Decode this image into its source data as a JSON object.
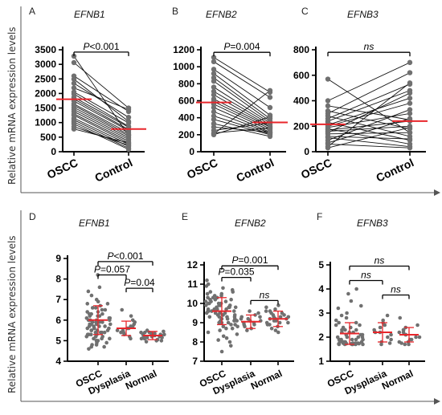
{
  "ylabel_text": "Relative mRNA expression levels",
  "chart_data": [
    {
      "id": "A",
      "type": "scatter",
      "title": "EFNB1",
      "panel_label": "A",
      "categories": [
        "OSCC",
        "Control"
      ],
      "ylim": [
        0,
        3500
      ],
      "yticks": [
        0,
        500,
        1000,
        1500,
        2000,
        2500,
        3000,
        3500
      ],
      "paired": true,
      "pairs": [
        [
          3280,
          560
        ],
        [
          3060,
          1500
        ],
        [
          2600,
          1380
        ],
        [
          2490,
          1040
        ],
        [
          2350,
          1180
        ],
        [
          2190,
          1450
        ],
        [
          2050,
          990
        ],
        [
          1980,
          870
        ],
        [
          1870,
          840
        ],
        [
          1810,
          760
        ],
        [
          1740,
          720
        ],
        [
          1640,
          650
        ],
        [
          1590,
          590
        ],
        [
          1520,
          540
        ],
        [
          1450,
          480
        ],
        [
          1380,
          420
        ],
        [
          1300,
          360
        ],
        [
          1250,
          300
        ],
        [
          1150,
          250
        ],
        [
          1090,
          180
        ],
        [
          1020,
          120
        ],
        [
          950,
          80
        ],
        [
          860,
          220
        ],
        [
          780,
          300
        ]
      ],
      "means": [
        1800,
        780
      ],
      "annotations": [
        {
          "text": "P<0.001",
          "from": 0,
          "to": 1,
          "y": 3420
        }
      ]
    },
    {
      "id": "B",
      "type": "scatter",
      "title": "EFNB2",
      "panel_label": "B",
      "categories": [
        "OSCC",
        "Control"
      ],
      "ylim": [
        0,
        1200
      ],
      "yticks": [
        0,
        200,
        400,
        600,
        800,
        1000,
        1200
      ],
      "paired": true,
      "pairs": [
        [
          1110,
          700
        ],
        [
          1060,
          640
        ],
        [
          970,
          520
        ],
        [
          920,
          430
        ],
        [
          870,
          390
        ],
        [
          830,
          360
        ],
        [
          760,
          340
        ],
        [
          710,
          320
        ],
        [
          670,
          300
        ],
        [
          620,
          290
        ],
        [
          590,
          270
        ],
        [
          560,
          250
        ],
        [
          520,
          230
        ],
        [
          470,
          220
        ],
        [
          420,
          210
        ],
        [
          380,
          200
        ],
        [
          330,
          180
        ],
        [
          290,
          230
        ],
        [
          250,
          340
        ],
        [
          220,
          280
        ],
        [
          210,
          720
        ],
        [
          200,
          410
        ]
      ],
      "means": [
        580,
        345
      ],
      "annotations": [
        {
          "text": "P=0.004",
          "from": 0,
          "to": 1,
          "y": 1170
        }
      ]
    },
    {
      "id": "C",
      "type": "scatter",
      "title": "EFNB3",
      "panel_label": "C",
      "categories": [
        "OSCC",
        "Control"
      ],
      "ylim": [
        0,
        800
      ],
      "yticks": [
        0,
        200,
        400,
        600,
        800
      ],
      "paired": true,
      "pairs": [
        [
          570,
          150
        ],
        [
          400,
          700
        ],
        [
          360,
          250
        ],
        [
          320,
          180
        ],
        [
          300,
          620
        ],
        [
          280,
          120
        ],
        [
          260,
          530
        ],
        [
          240,
          480
        ],
        [
          230,
          90
        ],
        [
          210,
          420
        ],
        [
          200,
          380
        ],
        [
          190,
          300
        ],
        [
          180,
          60
        ],
        [
          170,
          240
        ],
        [
          160,
          200
        ],
        [
          150,
          460
        ],
        [
          140,
          150
        ],
        [
          120,
          100
        ],
        [
          110,
          40
        ],
        [
          90,
          330
        ],
        [
          70,
          260
        ],
        [
          60,
          30
        ],
        [
          40,
          540
        ],
        [
          30,
          190
        ]
      ],
      "means": [
        215,
        240
      ],
      "annotations": [
        {
          "text": "ns",
          "from": 0,
          "to": 1,
          "y": 780
        }
      ]
    },
    {
      "id": "D",
      "type": "scatter",
      "title": "EFNB1",
      "panel_label": "D",
      "categories": [
        "OSCC",
        "Dysplasia",
        "Normal"
      ],
      "ylim": [
        4,
        9
      ],
      "yticks": [
        4,
        5,
        6,
        7,
        8,
        9
      ],
      "groups": [
        {
          "name": "OSCC",
          "mean": 6.0,
          "sd_low": 5.3,
          "sd_high": 6.7,
          "spread": 0.22,
          "values": [
            8.2,
            7.6,
            7.4,
            7.2,
            7.0,
            6.9,
            6.8,
            6.8,
            6.7,
            6.6,
            6.6,
            6.5,
            6.5,
            6.4,
            6.4,
            6.3,
            6.3,
            6.3,
            6.2,
            6.2,
            6.2,
            6.1,
            6.1,
            6.1,
            6.0,
            6.0,
            6.0,
            6.0,
            5.9,
            5.9,
            5.9,
            5.9,
            5.8,
            5.8,
            5.8,
            5.8,
            5.7,
            5.7,
            5.7,
            5.7,
            5.6,
            5.6,
            5.6,
            5.6,
            5.5,
            5.5,
            5.5,
            5.5,
            5.4,
            5.4,
            5.4,
            5.4,
            5.3,
            5.3,
            5.3,
            5.3,
            5.2,
            5.2,
            5.2,
            5.1,
            5.1,
            5.1,
            5.0,
            5.0,
            5.0,
            4.9,
            4.9,
            4.8,
            4.8,
            4.7,
            4.7,
            4.6
          ]
        },
        {
          "name": "Dysplasia",
          "mean": 5.6,
          "sd_low": 5.25,
          "sd_high": 5.95,
          "spread": 0.14,
          "values": [
            6.5,
            6.2,
            6.0,
            5.9,
            5.8,
            5.7,
            5.7,
            5.6,
            5.6,
            5.5,
            5.5,
            5.4,
            5.4,
            5.3,
            5.2,
            5.1
          ]
        },
        {
          "name": "Normal",
          "mean": 5.25,
          "sd_low": 5.05,
          "sd_high": 5.45,
          "spread": 0.2,
          "values": [
            5.5,
            5.45,
            5.4,
            5.4,
            5.35,
            5.35,
            5.3,
            5.3,
            5.3,
            5.25,
            5.25,
            5.2,
            5.2,
            5.2,
            5.15,
            5.15,
            5.1,
            5.1,
            5.05,
            5.05,
            5.0,
            5.0,
            4.95,
            5.3,
            5.4
          ]
        }
      ],
      "annotations": [
        {
          "text": "P<0.001",
          "from": 0,
          "to": 2,
          "y": 8.85
        },
        {
          "text": "P=0.057",
          "from": 0,
          "to": 1,
          "y": 8.2
        },
        {
          "text": "P=0.04",
          "from": 1,
          "to": 2,
          "y": 7.55
        }
      ]
    },
    {
      "id": "E",
      "type": "scatter",
      "title": "EFNB2",
      "panel_label": "E",
      "categories": [
        "OSCC",
        "Dysplasia",
        "Normal"
      ],
      "ylim": [
        7,
        12
      ],
      "yticks": [
        7,
        8,
        9,
        10,
        11,
        12
      ],
      "groups": [
        {
          "name": "OSCC",
          "mean": 9.6,
          "sd_low": 8.9,
          "sd_high": 10.3,
          "spread": 0.3,
          "values": [
            11.2,
            11.0,
            10.9,
            10.8,
            10.7,
            10.6,
            10.6,
            10.5,
            10.5,
            10.4,
            10.4,
            10.3,
            10.3,
            10.3,
            10.2,
            10.2,
            10.2,
            10.1,
            10.1,
            10.1,
            10.0,
            10.0,
            10.0,
            10.0,
            9.9,
            9.9,
            9.9,
            9.9,
            9.8,
            9.8,
            9.8,
            9.8,
            9.7,
            9.7,
            9.7,
            9.7,
            9.6,
            9.6,
            9.6,
            9.6,
            9.5,
            9.5,
            9.5,
            9.5,
            9.4,
            9.4,
            9.4,
            9.4,
            9.3,
            9.3,
            9.3,
            9.3,
            9.2,
            9.2,
            9.2,
            9.1,
            9.1,
            9.1,
            9.0,
            9.0,
            9.0,
            8.9,
            8.9,
            8.8,
            8.8,
            8.7,
            8.7,
            8.6,
            8.5,
            8.4,
            8.3,
            8.2,
            8.1,
            8.0,
            7.8,
            7.5
          ]
        },
        {
          "name": "Dysplasia",
          "mean": 9.05,
          "sd_low": 8.7,
          "sd_high": 9.4,
          "spread": 0.16,
          "values": [
            9.6,
            9.5,
            9.4,
            9.3,
            9.2,
            9.1,
            9.1,
            9.0,
            9.0,
            8.9,
            8.9,
            8.8,
            8.7,
            8.6,
            9.2,
            9.3
          ]
        },
        {
          "name": "Normal",
          "mean": 9.2,
          "sd_low": 8.8,
          "sd_high": 9.6,
          "spread": 0.22,
          "values": [
            9.9,
            9.8,
            9.7,
            9.6,
            9.5,
            9.5,
            9.4,
            9.4,
            9.3,
            9.3,
            9.2,
            9.2,
            9.2,
            9.1,
            9.1,
            9.0,
            9.0,
            8.9,
            8.9,
            8.8,
            8.7,
            8.6,
            8.5,
            9.3,
            9.6,
            9.0
          ]
        }
      ],
      "annotations": [
        {
          "text": "P=0.001",
          "from": 0,
          "to": 2,
          "y": 11.95
        },
        {
          "text": "P=0.035",
          "from": 0,
          "to": 1,
          "y": 11.35
        },
        {
          "text": "ns",
          "from": 1,
          "to": 2,
          "y": 10.15
        }
      ]
    },
    {
      "id": "F",
      "type": "scatter",
      "title": "EFNB3",
      "panel_label": "F",
      "categories": [
        "OSCC",
        "Dysplasia",
        "Normal"
      ],
      "ylim": [
        1,
        5
      ],
      "yticks": [
        1,
        2,
        3,
        4,
        5
      ],
      "groups": [
        {
          "name": "OSCC",
          "mean": 2.15,
          "sd_low": 1.7,
          "sd_high": 2.6,
          "spread": 0.26,
          "values": [
            4.0,
            3.8,
            3.5,
            3.3,
            3.2,
            3.0,
            2.9,
            2.8,
            2.7,
            2.6,
            2.6,
            2.5,
            2.5,
            2.4,
            2.4,
            2.3,
            2.3,
            2.3,
            2.2,
            2.2,
            2.2,
            2.1,
            2.1,
            2.1,
            2.0,
            2.0,
            2.0,
            2.0,
            1.9,
            1.9,
            1.9,
            1.9,
            1.9,
            1.8,
            1.8,
            1.8,
            1.8,
            1.8,
            1.75,
            1.75,
            1.75,
            1.75,
            1.7,
            1.7,
            1.7,
            1.7,
            1.7,
            1.7,
            1.72,
            1.72,
            1.72,
            1.72,
            1.73,
            1.73
          ]
        },
        {
          "name": "Dysplasia",
          "mean": 2.2,
          "sd_low": 1.8,
          "sd_high": 2.6,
          "spread": 0.16,
          "values": [
            2.9,
            2.7,
            2.6,
            2.5,
            2.4,
            2.3,
            2.2,
            2.2,
            2.1,
            2.0,
            1.9,
            1.8,
            1.75,
            1.7
          ]
        },
        {
          "name": "Normal",
          "mean": 2.1,
          "sd_low": 1.8,
          "sd_high": 2.4,
          "spread": 0.18,
          "values": [
            2.8,
            2.5,
            2.4,
            2.3,
            2.2,
            2.2,
            2.1,
            2.1,
            2.0,
            2.0,
            1.9,
            1.9,
            1.8,
            1.8,
            1.75,
            1.7,
            1.7,
            2.3
          ]
        }
      ],
      "annotations": [
        {
          "text": "ns",
          "from": 0,
          "to": 2,
          "y": 4.95
        },
        {
          "text": "ns",
          "from": 0,
          "to": 1,
          "y": 4.35
        },
        {
          "text": "ns",
          "from": 1,
          "to": 2,
          "y": 3.75
        }
      ]
    }
  ],
  "colors": {
    "point": "#707070",
    "mean": "#e8262b",
    "line": "#000000",
    "frame": "#555555"
  }
}
